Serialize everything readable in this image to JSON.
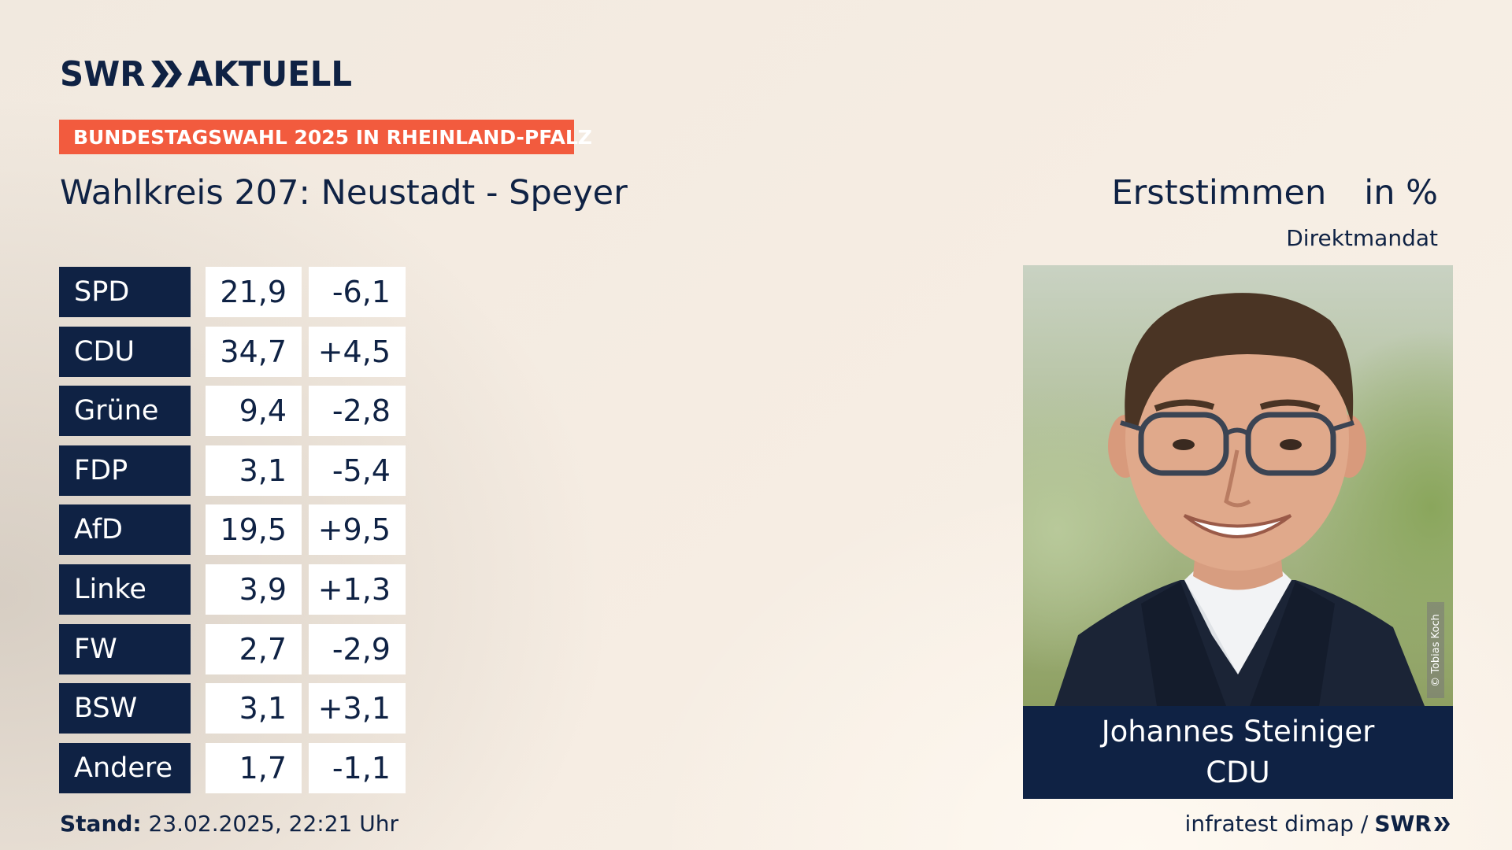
{
  "header": {
    "logo_left": "SWR",
    "logo_right": "AKTUELL",
    "banner": "BUNDESTAGSWAHL 2025 IN RHEINLAND-PFALZ",
    "title": "Wahlkreis 207: Neustadt - Speyer",
    "measure": "Erststimmen",
    "unit": "in %",
    "subtitle": "Direktmandat"
  },
  "results": [
    {
      "party": "SPD",
      "value": "21,9",
      "diff": "-6,1"
    },
    {
      "party": "CDU",
      "value": "34,7",
      "diff": "+4,5"
    },
    {
      "party": "Grüne",
      "value": "9,4",
      "diff": "-2,8"
    },
    {
      "party": "FDP",
      "value": "3,1",
      "diff": "-5,4"
    },
    {
      "party": "AfD",
      "value": "19,5",
      "diff": "+9,5"
    },
    {
      "party": "Linke",
      "value": "3,9",
      "diff": "+1,3"
    },
    {
      "party": "FW",
      "value": "2,7",
      "diff": "-2,9"
    },
    {
      "party": "BSW",
      "value": "3,1",
      "diff": "+3,1"
    },
    {
      "party": "Andere",
      "value": "1,7",
      "diff": "-1,1"
    }
  ],
  "winner": {
    "name": "Johannes Steiniger",
    "party": "CDU",
    "photo_credit": "© Tobias Koch"
  },
  "footer": {
    "stand_label": "Stand:",
    "stand_value": "23.02.2025, 22:21 Uhr",
    "source": "infratest dimap /",
    "brand": "SWR"
  },
  "colors": {
    "navy": "#0f2244",
    "banner": "#f25b3e",
    "cell": "#ffffff"
  }
}
